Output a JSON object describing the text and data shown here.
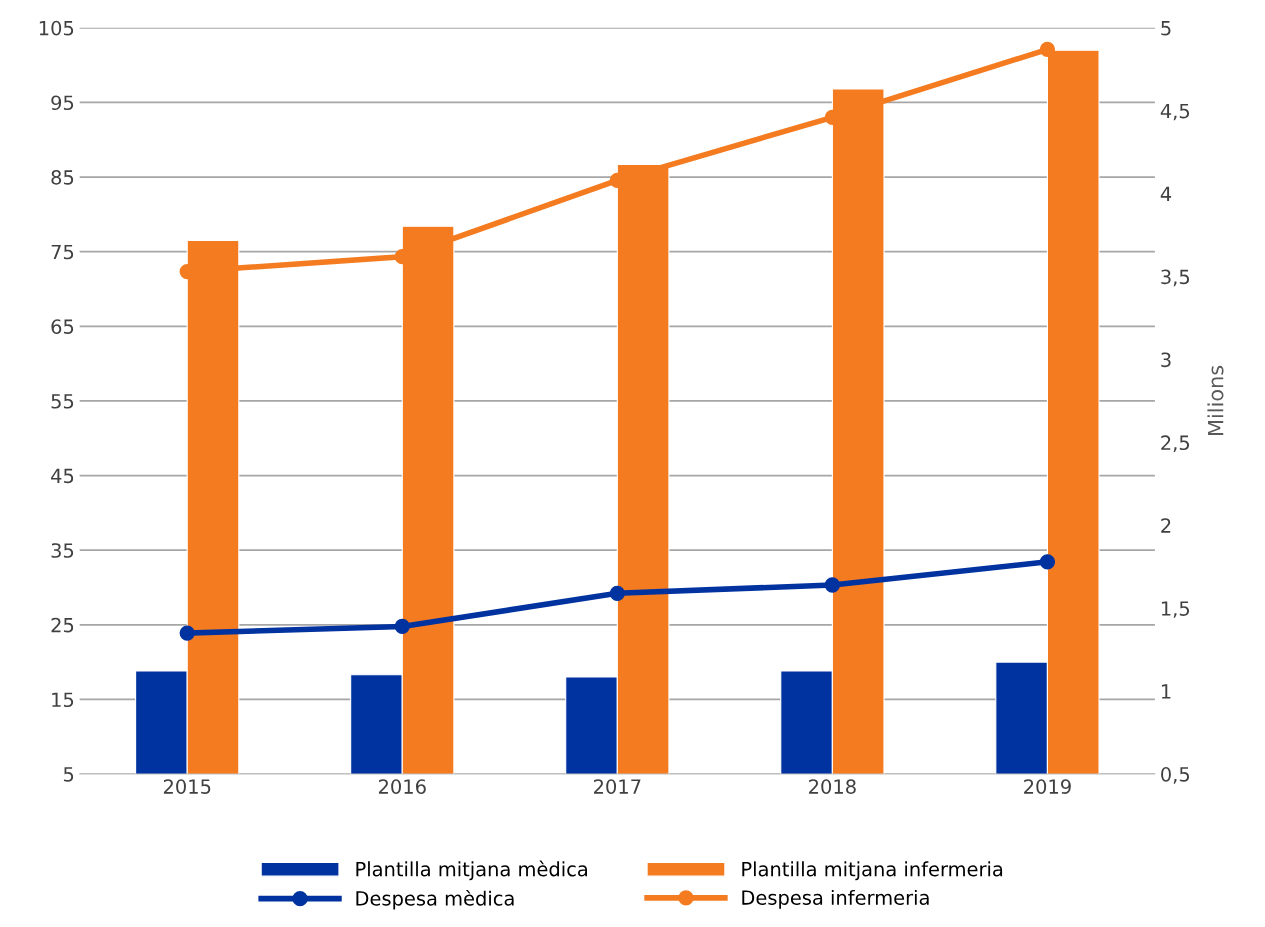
{
  "chart_data": {
    "type": "bar",
    "categories": [
      "2015",
      "2016",
      "2017",
      "2018",
      "2019"
    ],
    "series": [
      {
        "name": "Plantilla mitjana mèdica",
        "color": "#0033a0",
        "values": [
          18.8,
          18.3,
          18.0,
          18.8,
          20.0
        ]
      },
      {
        "name": "Plantilla mitjana infermeria",
        "color": "#f47b20",
        "values": [
          76.5,
          78.4,
          86.7,
          96.8,
          102.0
        ]
      },
      {
        "name": "Despesa mèdica",
        "type": "line",
        "axis": "y2",
        "color": "#0033a0",
        "values": [
          1.35,
          1.39,
          1.59,
          1.64,
          1.78
        ]
      },
      {
        "name": "Despesa infermeria",
        "type": "line",
        "axis": "y2",
        "color": "#f47b20",
        "values": [
          3.53,
          3.62,
          4.08,
          4.46,
          4.87
        ]
      }
    ],
    "ylim": [
      5,
      105
    ],
    "yticks": [
      5,
      15,
      25,
      35,
      45,
      55,
      65,
      75,
      85,
      95,
      105
    ],
    "y2lim": [
      0.5,
      5
    ],
    "y2ticks": [
      {
        "value": 0.5,
        "label": "0,5"
      },
      1,
      {
        "value": 1.5,
        "label": "1,5"
      },
      2,
      {
        "value": 2.5,
        "label": "2,5"
      },
      3,
      {
        "value": 3.5,
        "label": "3,5"
      },
      4,
      {
        "value": 4.5,
        "label": "4,5"
      },
      5
    ],
    "y2label": "Milions",
    "grid": "y",
    "legend": "bottom",
    "marker": "circle"
  }
}
